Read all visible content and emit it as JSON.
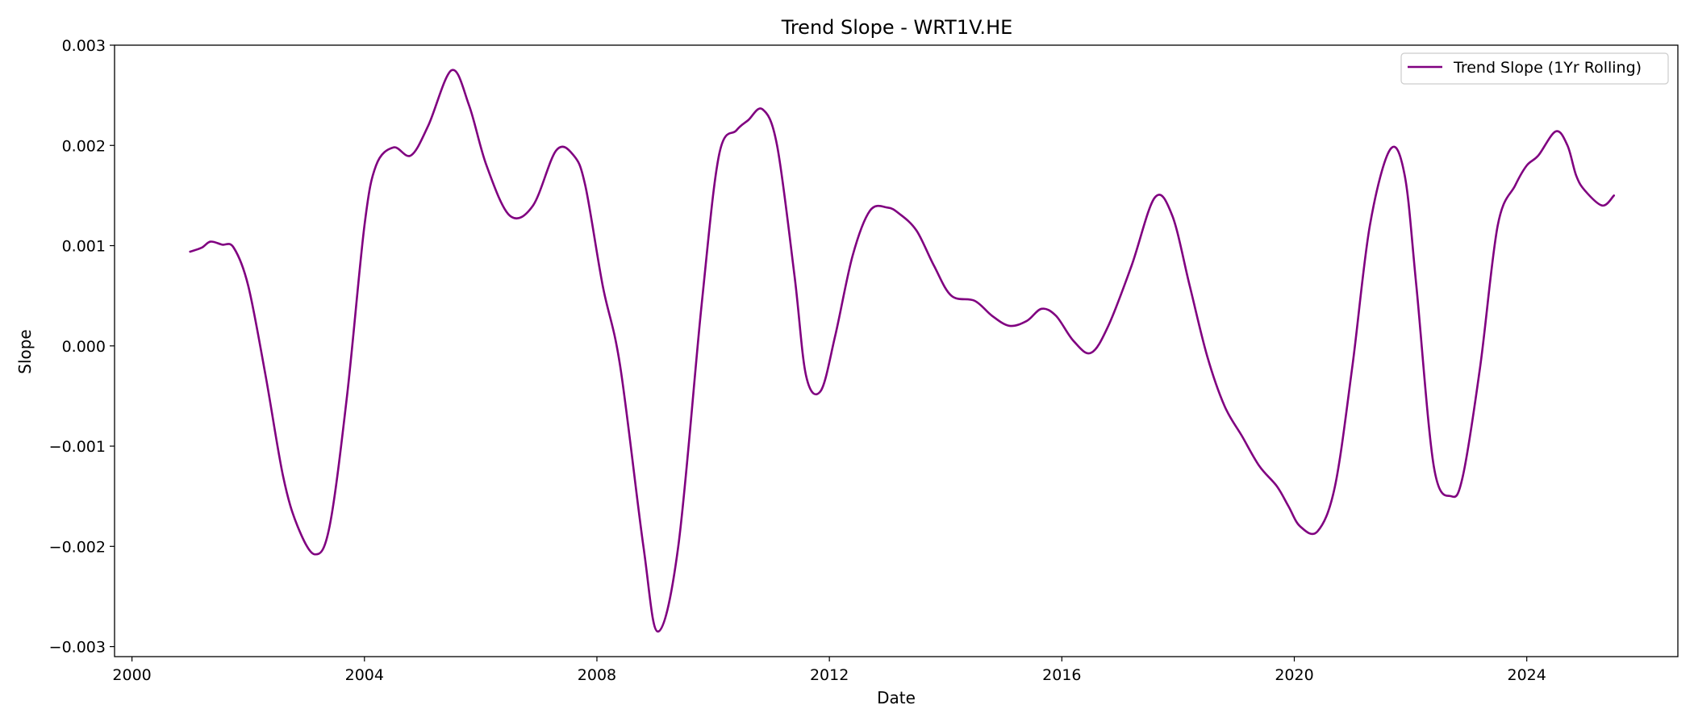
{
  "chart_data": {
    "type": "line",
    "title": "Trend Slope - WRT1V.HE",
    "xlabel": "Date",
    "ylabel": "Slope",
    "xlim": [
      1999.7,
      2026.6
    ],
    "ylim": [
      -0.0031,
      0.003
    ],
    "x_ticks": [
      2000,
      2004,
      2008,
      2012,
      2016,
      2020,
      2024
    ],
    "x_tick_labels": [
      "2000",
      "2004",
      "2008",
      "2012",
      "2016",
      "2020",
      "2024"
    ],
    "y_ticks": [
      -0.003,
      -0.002,
      -0.001,
      0.0,
      0.001,
      0.002,
      0.003
    ],
    "y_tick_labels": [
      "−0.003",
      "−0.002",
      "−0.001",
      "0.000",
      "0.001",
      "0.002",
      "0.003"
    ],
    "grid": false,
    "legend_position": "top-right",
    "series": [
      {
        "name": "Trend Slope (1Yr Rolling)",
        "color": "#800080",
        "x": [
          2001.0,
          2001.2,
          2001.35,
          2001.55,
          2001.75,
          2002.0,
          2002.3,
          2002.6,
          2002.85,
          2003.15,
          2003.4,
          2003.7,
          2004.0,
          2004.2,
          2004.5,
          2004.8,
          2005.1,
          2005.5,
          2005.8,
          2006.1,
          2006.5,
          2006.9,
          2007.3,
          2007.6,
          2007.8,
          2008.1,
          2008.4,
          2008.8,
          2009.05,
          2009.4,
          2009.8,
          2010.1,
          2010.4,
          2010.6,
          2010.85,
          2011.1,
          2011.4,
          2011.6,
          2011.85,
          2012.1,
          2012.4,
          2012.7,
          2013.0,
          2013.2,
          2013.5,
          2013.8,
          2014.1,
          2014.5,
          2014.8,
          2015.1,
          2015.4,
          2015.65,
          2015.9,
          2016.2,
          2016.5,
          2016.8,
          2017.2,
          2017.6,
          2017.9,
          2018.2,
          2018.5,
          2018.8,
          2019.1,
          2019.4,
          2019.7,
          2019.9,
          2020.1,
          2020.4,
          2020.7,
          2021.0,
          2021.3,
          2021.65,
          2021.9,
          2022.1,
          2022.4,
          2022.7,
          2022.9,
          2023.2,
          2023.5,
          2023.8,
          2024.0,
          2024.2,
          2024.5,
          2024.7,
          2024.85,
          2025.0,
          2025.3,
          2025.5
        ],
        "y": [
          0.00094,
          0.00098,
          0.00104,
          0.00101,
          0.00098,
          0.0006,
          -0.0003,
          -0.0013,
          -0.0018,
          -0.00208,
          -0.0018,
          -0.0005,
          0.0012,
          0.0018,
          0.00198,
          0.0019,
          0.0022,
          0.00275,
          0.0024,
          0.0018,
          0.0013,
          0.0014,
          0.00195,
          0.0019,
          0.0016,
          0.0006,
          -0.0002,
          -0.002,
          -0.00285,
          -0.002,
          0.0004,
          0.0019,
          0.00215,
          0.00225,
          0.00236,
          0.002,
          0.0007,
          -0.0003,
          -0.00045,
          0.0001,
          0.0009,
          0.00135,
          0.00138,
          0.00132,
          0.00115,
          0.0008,
          0.0005,
          0.00045,
          0.0003,
          0.0002,
          0.00025,
          0.00037,
          0.0003,
          5e-05,
          -7e-05,
          0.0002,
          0.0008,
          0.00148,
          0.0013,
          0.0006,
          -0.0001,
          -0.0006,
          -0.0009,
          -0.0012,
          -0.0014,
          -0.0016,
          -0.0018,
          -0.00185,
          -0.0014,
          -0.0002,
          0.0012,
          0.00196,
          0.0017,
          0.0006,
          -0.0012,
          -0.0015,
          -0.0013,
          -0.0002,
          0.0012,
          0.0016,
          0.0018,
          0.0019,
          0.00214,
          0.002,
          0.0017,
          0.00155,
          0.0014,
          0.0015
        ]
      }
    ]
  }
}
